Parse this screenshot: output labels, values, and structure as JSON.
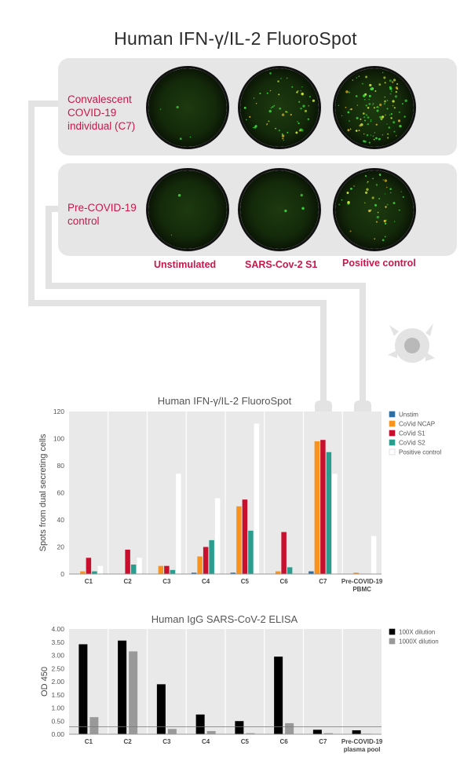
{
  "title": "Human IFN-γ/IL-2 FluoroSpot",
  "groups": [
    {
      "label": "Convalescent COVID-19 individual (C7)",
      "label_lines": [
        "Convalescent",
        "COVID-19",
        "individual (C7)"
      ]
    },
    {
      "label": "Pre-COVID-19 control",
      "label_lines": [
        "Pre-COVID-19",
        "control"
      ]
    }
  ],
  "columns": [
    "Unstimulated",
    "SARS-Cov-2 S1",
    "Positive control"
  ],
  "colors": {
    "accent": "#c8174a",
    "unstim": "#2f6ea3",
    "ncap": "#f7931e",
    "s1": "#c8102e",
    "s2": "#2a9d8f",
    "positive": "#ffffff",
    "dil100": "#000000",
    "dil1000": "#999999"
  },
  "chart_data": [
    {
      "type": "bar",
      "title": "Human IFN-γ/IL-2 FluoroSpot",
      "ylabel": "Spots from dual secreting cells",
      "ylim": [
        0,
        120
      ],
      "yticks": [
        0,
        20,
        40,
        60,
        80,
        100,
        120
      ],
      "categories": [
        "C1",
        "C2",
        "C3",
        "C4",
        "C5",
        "C6",
        "C7",
        "Pre-COVID-19 PBMC"
      ],
      "category_lines": [
        [
          "C1"
        ],
        [
          "C2"
        ],
        [
          "C3"
        ],
        [
          "C4"
        ],
        [
          "C5"
        ],
        [
          "C6"
        ],
        [
          "C7"
        ],
        [
          "Pre-COVID-19",
          "PBMC"
        ]
      ],
      "legend_position": "right",
      "series": [
        {
          "name": "Unstim",
          "color": "#2f6ea3",
          "values": [
            0,
            0,
            0,
            1,
            1,
            0,
            2,
            0
          ]
        },
        {
          "name": "CoVid NCAP",
          "color": "#f7931e",
          "values": [
            2,
            0,
            6,
            13,
            50,
            2,
            98,
            1
          ]
        },
        {
          "name": "CoVid S1",
          "color": "#c8102e",
          "values": [
            12,
            18,
            6,
            20,
            55,
            31,
            99,
            0
          ]
        },
        {
          "name": "CoVid S2",
          "color": "#2a9d8f",
          "values": [
            2,
            7,
            3,
            25,
            32,
            5,
            90,
            0
          ]
        },
        {
          "name": "Positive control",
          "color": "#ffffff",
          "values": [
            6,
            12,
            74,
            56,
            111,
            0,
            74,
            28
          ]
        }
      ]
    },
    {
      "type": "bar",
      "title": "Human IgG SARS-CoV-2 ELISA",
      "ylabel": "OD 450",
      "ylim": [
        0,
        4
      ],
      "yticks": [
        "0.00",
        "0.50",
        "1.00",
        "1.50",
        "2.00",
        "2.50",
        "3.00",
        "3.50",
        "4.00"
      ],
      "categories": [
        "C1",
        "C2",
        "C3",
        "C4",
        "C5",
        "C6",
        "C7",
        "Pre-COVID-19 plasma pool"
      ],
      "category_lines": [
        [
          "C1"
        ],
        [
          "C2"
        ],
        [
          "C3"
        ],
        [
          "C4"
        ],
        [
          "C5"
        ],
        [
          "C6"
        ],
        [
          "C7"
        ],
        [
          "Pre-COVID-19",
          "plasma pool"
        ]
      ],
      "legend_position": "right",
      "threshold": 0.28,
      "series": [
        {
          "name": "100X dilution",
          "color": "#000000",
          "values": [
            3.42,
            3.56,
            1.9,
            0.75,
            0.5,
            2.95,
            0.17,
            0.15
          ]
        },
        {
          "name": "1000X dilution",
          "color": "#999999",
          "values": [
            0.65,
            3.15,
            0.2,
            0.12,
            0.04,
            0.42,
            0.04,
            0.02
          ]
        }
      ]
    }
  ]
}
